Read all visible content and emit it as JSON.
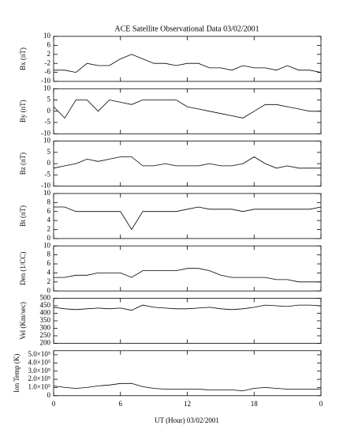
{
  "chart_data": [
    {
      "type": "line",
      "title": "ACE Satellite Observational Data  03/02/2001",
      "ylabel": "Bx (nT)",
      "color": "#000000",
      "x": [
        0,
        1,
        2,
        3,
        4,
        5,
        6,
        7,
        8,
        9,
        10,
        11,
        12,
        13,
        14,
        15,
        16,
        17,
        18,
        19,
        20,
        21,
        22,
        23,
        24
      ],
      "values": [
        -5,
        -5,
        -6,
        -2,
        -3,
        -3,
        0,
        2,
        0,
        -2,
        -2,
        -3,
        -2,
        -2,
        -4,
        -4,
        -5,
        -3,
        -4,
        -4,
        -5,
        -3,
        -5,
        -5,
        -6
      ],
      "xlim": [
        0,
        24
      ],
      "ylim": [
        -10,
        10
      ],
      "yticks": [
        10,
        6,
        2,
        -2,
        -6,
        -10
      ]
    },
    {
      "type": "line",
      "ylabel": "By (nT)",
      "color": "#000000",
      "x": [
        0,
        1,
        2,
        3,
        4,
        5,
        6,
        7,
        8,
        9,
        10,
        11,
        12,
        13,
        14,
        15,
        16,
        17,
        18,
        19,
        20,
        21,
        22,
        23,
        24
      ],
      "values": [
        2,
        -3,
        5,
        5,
        0,
        5,
        4,
        3,
        5,
        5,
        5,
        5,
        2,
        1,
        0,
        -1,
        -2,
        -3,
        0,
        3,
        3,
        2,
        1,
        0,
        0
      ],
      "xlim": [
        0,
        24
      ],
      "ylim": [
        -10,
        10
      ],
      "yticks": [
        10,
        5,
        0,
        -5,
        -10
      ]
    },
    {
      "type": "line",
      "ylabel": "Bz (nT)",
      "color": "#000000",
      "x": [
        0,
        1,
        2,
        3,
        4,
        5,
        6,
        7,
        8,
        9,
        10,
        11,
        12,
        13,
        14,
        15,
        16,
        17,
        18,
        19,
        20,
        21,
        22,
        23,
        24
      ],
      "values": [
        -2,
        -1,
        0,
        2,
        1,
        2,
        3,
        3,
        -1,
        -1,
        0,
        -1,
        -1,
        -1,
        0,
        -1,
        -1,
        0,
        3,
        0,
        -2,
        -1,
        -2,
        -2,
        -2
      ],
      "xlim": [
        0,
        24
      ],
      "ylim": [
        -10,
        10
      ],
      "yticks": [
        10,
        5,
        0,
        -5,
        -10
      ]
    },
    {
      "type": "line",
      "ylabel": "Bt (nT)",
      "color": "#000000",
      "x": [
        0,
        1,
        2,
        3,
        4,
        5,
        6,
        7,
        8,
        9,
        10,
        11,
        12,
        13,
        14,
        15,
        16,
        17,
        18,
        19,
        20,
        21,
        22,
        23,
        24
      ],
      "values": [
        7,
        7,
        6,
        6,
        6,
        6,
        6,
        2,
        6,
        6,
        6,
        6,
        6.5,
        7,
        6.5,
        6.5,
        6.5,
        6,
        6.5,
        6.5,
        6.5,
        6.5,
        6.5,
        6.5,
        7
      ],
      "xlim": [
        0,
        24
      ],
      "ylim": [
        0,
        10
      ],
      "yticks": [
        10,
        8,
        6,
        4,
        2,
        0
      ]
    },
    {
      "type": "line",
      "ylabel": "Den (1/CC)",
      "color": "#000000",
      "x": [
        0,
        1,
        2,
        3,
        4,
        5,
        6,
        7,
        8,
        9,
        10,
        11,
        12,
        13,
        14,
        15,
        16,
        17,
        18,
        19,
        20,
        21,
        22,
        23,
        24
      ],
      "values": [
        3,
        3,
        3.5,
        3.5,
        4,
        4,
        4,
        3,
        4.5,
        4.5,
        4.5,
        4.5,
        5,
        5,
        4.5,
        3.5,
        3,
        3,
        3,
        3,
        2.5,
        2.5,
        2,
        2,
        2
      ],
      "xlim": [
        0,
        24
      ],
      "ylim": [
        0,
        10
      ],
      "yticks": [
        10,
        8,
        6,
        4,
        2,
        0
      ]
    },
    {
      "type": "line",
      "ylabel": "Vel (Km/sec)",
      "color": "#000000",
      "x": [
        0,
        1,
        2,
        3,
        4,
        5,
        6,
        7,
        8,
        9,
        10,
        11,
        12,
        13,
        14,
        15,
        16,
        17,
        18,
        19,
        20,
        21,
        22,
        23,
        24
      ],
      "values": [
        440,
        430,
        425,
        430,
        435,
        430,
        435,
        420,
        455,
        440,
        435,
        430,
        430,
        435,
        440,
        430,
        425,
        430,
        440,
        455,
        450,
        445,
        455,
        455,
        450
      ],
      "xlim": [
        0,
        24
      ],
      "ylim": [
        200,
        500
      ],
      "yticks": [
        500,
        450,
        400,
        350,
        300,
        250,
        200
      ]
    },
    {
      "type": "line",
      "ylabel": "Ion Temp (K)",
      "xlabel": "UT (Hour)  03/02/2001",
      "color": "#000000",
      "x": [
        0,
        1,
        2,
        3,
        4,
        5,
        6,
        7,
        8,
        9,
        10,
        11,
        12,
        13,
        14,
        15,
        16,
        17,
        18,
        19,
        20,
        21,
        22,
        23,
        24
      ],
      "values": [
        120000,
        100000,
        90000,
        100000,
        120000,
        130000,
        150000,
        150000,
        110000,
        90000,
        80000,
        80000,
        80000,
        80000,
        70000,
        70000,
        70000,
        60000,
        90000,
        100000,
        90000,
        80000,
        80000,
        80000,
        80000
      ],
      "xlim": [
        0,
        24
      ],
      "ylim": [
        0,
        550000
      ],
      "yticks": [
        {
          "value": 500000,
          "label": "5.0×10⁵"
        },
        {
          "value": 400000,
          "label": "4.0×10⁵"
        },
        {
          "value": 300000,
          "label": "3.0×10⁵"
        },
        {
          "value": 200000,
          "label": "2.0×10⁵"
        },
        {
          "value": 100000,
          "label": "1.0×10⁵"
        },
        0
      ],
      "xticks": [
        0,
        6,
        12,
        18,
        {
          "value": 24,
          "label": "0"
        }
      ]
    }
  ]
}
